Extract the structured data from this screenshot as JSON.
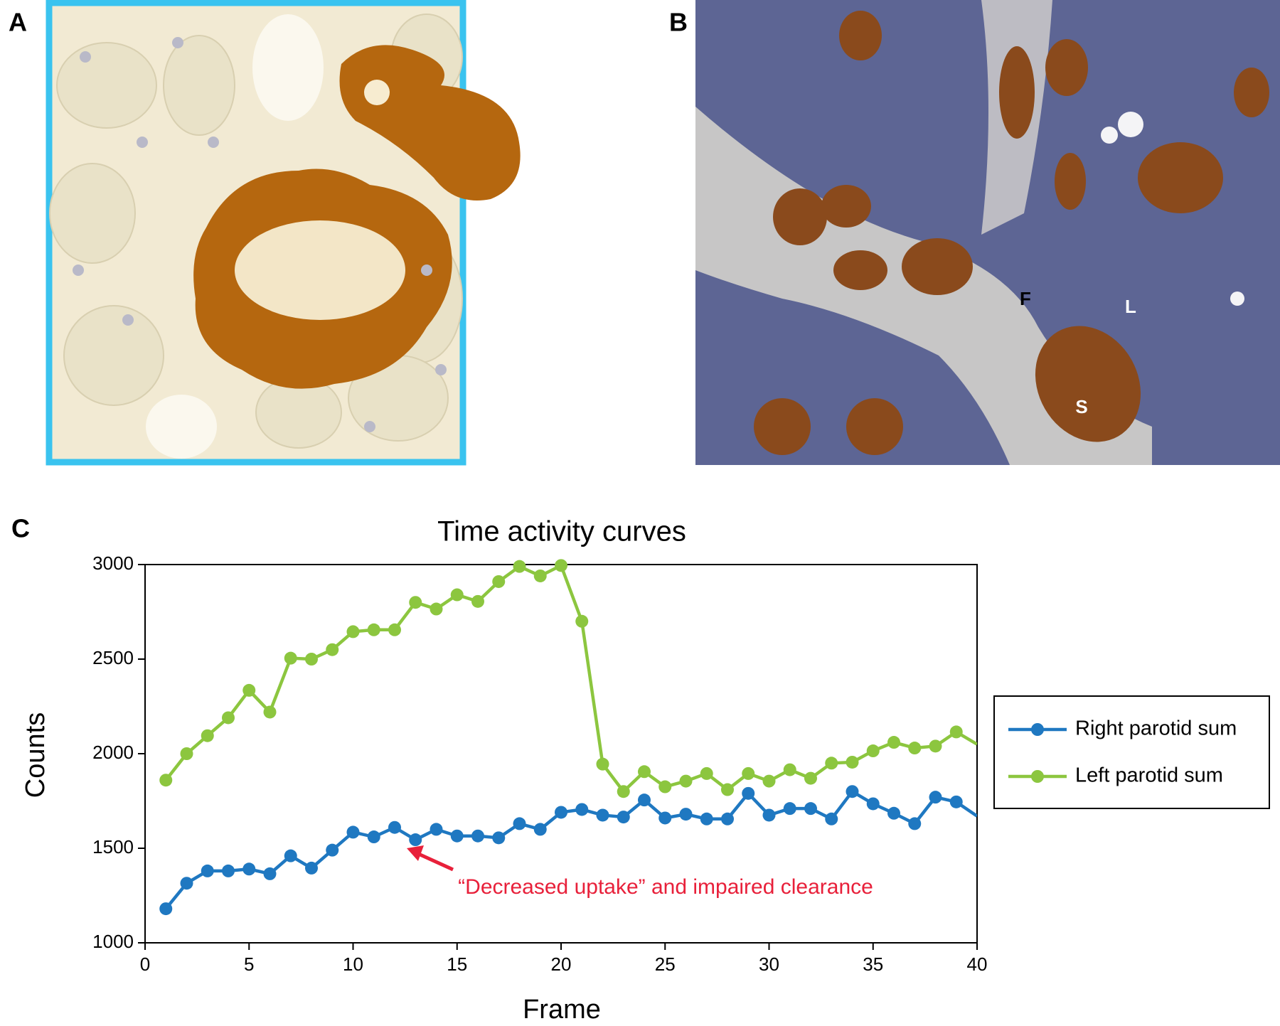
{
  "panels": {
    "a": {
      "label": "A"
    },
    "b": {
      "label": "B",
      "annotations": [
        "F",
        "L",
        "S"
      ]
    }
  },
  "chart_data": {
    "type": "line",
    "panel_label": "C",
    "title": "Time activity curves",
    "x_label": "Frame",
    "y_label": "Counts",
    "x": [
      1,
      2,
      3,
      4,
      5,
      6,
      7,
      8,
      9,
      10,
      11,
      12,
      13,
      14,
      15,
      16,
      17,
      18,
      19,
      20,
      21,
      22,
      23,
      24,
      25,
      26,
      27,
      28,
      29,
      30,
      31,
      32,
      33,
      34,
      35,
      36,
      37,
      38,
      39,
      40
    ],
    "series": [
      {
        "name": "Right parotid sum",
        "color": "#1f78c1",
        "values": [
          1180,
          1315,
          1380,
          1380,
          1390,
          1365,
          1460,
          1395,
          1490,
          1585,
          1560,
          1610,
          1545,
          1600,
          1565,
          1565,
          1555,
          1630,
          1600,
          1690,
          1705,
          1675,
          1665,
          1755,
          1660,
          1680,
          1655,
          1655,
          1790,
          1675,
          1710,
          1710,
          1655,
          1800,
          1735,
          1685,
          1630,
          1770,
          1745,
          1670
        ]
      },
      {
        "name": "Left parotid sum",
        "color": "#8cc63f",
        "values": [
          1860,
          2000,
          2095,
          2190,
          2335,
          2220,
          2505,
          2500,
          2550,
          2645,
          2655,
          2655,
          2800,
          2765,
          2840,
          2805,
          2910,
          2990,
          2940,
          2995,
          2700,
          1945,
          1800,
          1905,
          1825,
          1855,
          1895,
          1810,
          1895,
          1855,
          1915,
          1870,
          1950,
          1955,
          2015,
          2060,
          2030,
          2040,
          2115,
          2050
        ]
      }
    ],
    "xlim": [
      0,
      40
    ],
    "xticks": [
      0,
      5,
      10,
      15,
      20,
      25,
      30,
      35,
      40
    ],
    "ylim": [
      1000,
      3000
    ],
    "yticks": [
      1000,
      1500,
      2000,
      2500,
      3000
    ],
    "annotation": "“Decreased uptake” and impaired clearance",
    "annotation_color": "#e8203a"
  }
}
